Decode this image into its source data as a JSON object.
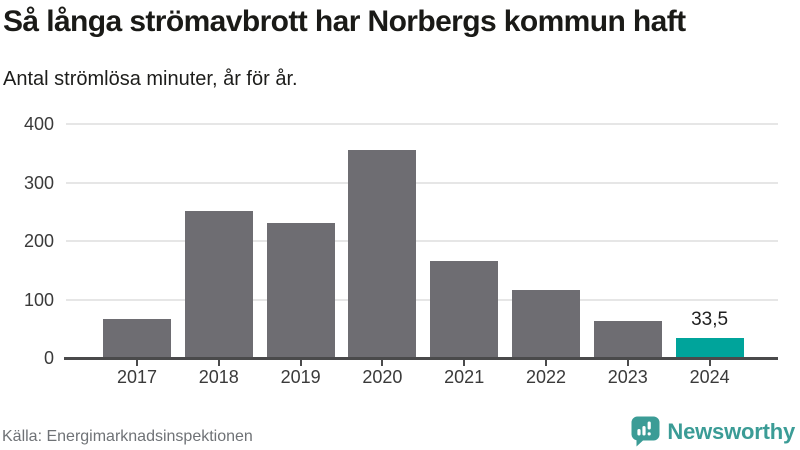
{
  "header": {
    "title": "Så långa strömavbrott har Norbergs kommun haft",
    "subtitle": "Antal strömlösa minuter, år för år."
  },
  "chart_data": {
    "type": "bar",
    "title": "Så långa strömavbrott har Norbergs kommun haft",
    "subtitle": "Antal strömlösa minuter, år för år.",
    "categories": [
      "2017",
      "2018",
      "2019",
      "2020",
      "2021",
      "2022",
      "2023",
      "2024"
    ],
    "values": [
      66,
      251,
      230,
      355,
      166,
      117,
      63,
      33.5
    ],
    "value_labels": [
      "",
      "",
      "",
      "",
      "",
      "",
      "",
      "33,5"
    ],
    "xlabel": "",
    "ylabel": "Antal strömlösa minuter",
    "ylim": [
      0,
      400
    ],
    "yticks": [
      0,
      100,
      200,
      300,
      400
    ],
    "grid": true,
    "legend": "none",
    "bar_color": "#6e6d72",
    "highlight_index": 7,
    "highlight_color": "#00a49b"
  },
  "footer": {
    "source": "Källa: Energimarknadsinspektionen",
    "brand": "Newsworthy"
  },
  "colors": {
    "accent_teal": "#00a49b",
    "bar_gray": "#6e6d72",
    "brand_teal": "#3b9c96",
    "gridline": "#e6e6e6",
    "axis": "#4a4a4b",
    "text_dark": "#1a1a17",
    "text_muted": "#6f7276"
  }
}
